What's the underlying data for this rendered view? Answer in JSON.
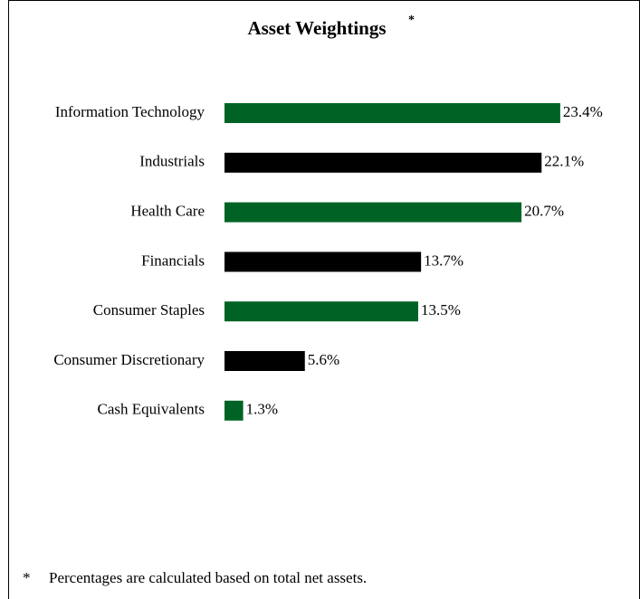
{
  "chart_data": {
    "type": "hbar",
    "title": "Asset Weightings",
    "title_marker": "*",
    "categories": [
      "Information Technology",
      "Industrials",
      "Health Care",
      "Financials",
      "Consumer Staples",
      "Consumer Discretionary",
      "Cash Equivalents"
    ],
    "values": [
      23.4,
      22.1,
      20.7,
      13.7,
      13.5,
      5.6,
      1.3
    ],
    "value_labels": [
      "23.4%",
      "22.1%",
      "20.7%",
      "13.7%",
      "13.5%",
      "5.6%",
      "1.3%"
    ],
    "colors": [
      "#006325",
      "#000000",
      "#006325",
      "#000000",
      "#006325",
      "#000000",
      "#006325"
    ],
    "footnote": {
      "marker": "*",
      "text": "Percentages are calculated based on total net assets."
    }
  }
}
